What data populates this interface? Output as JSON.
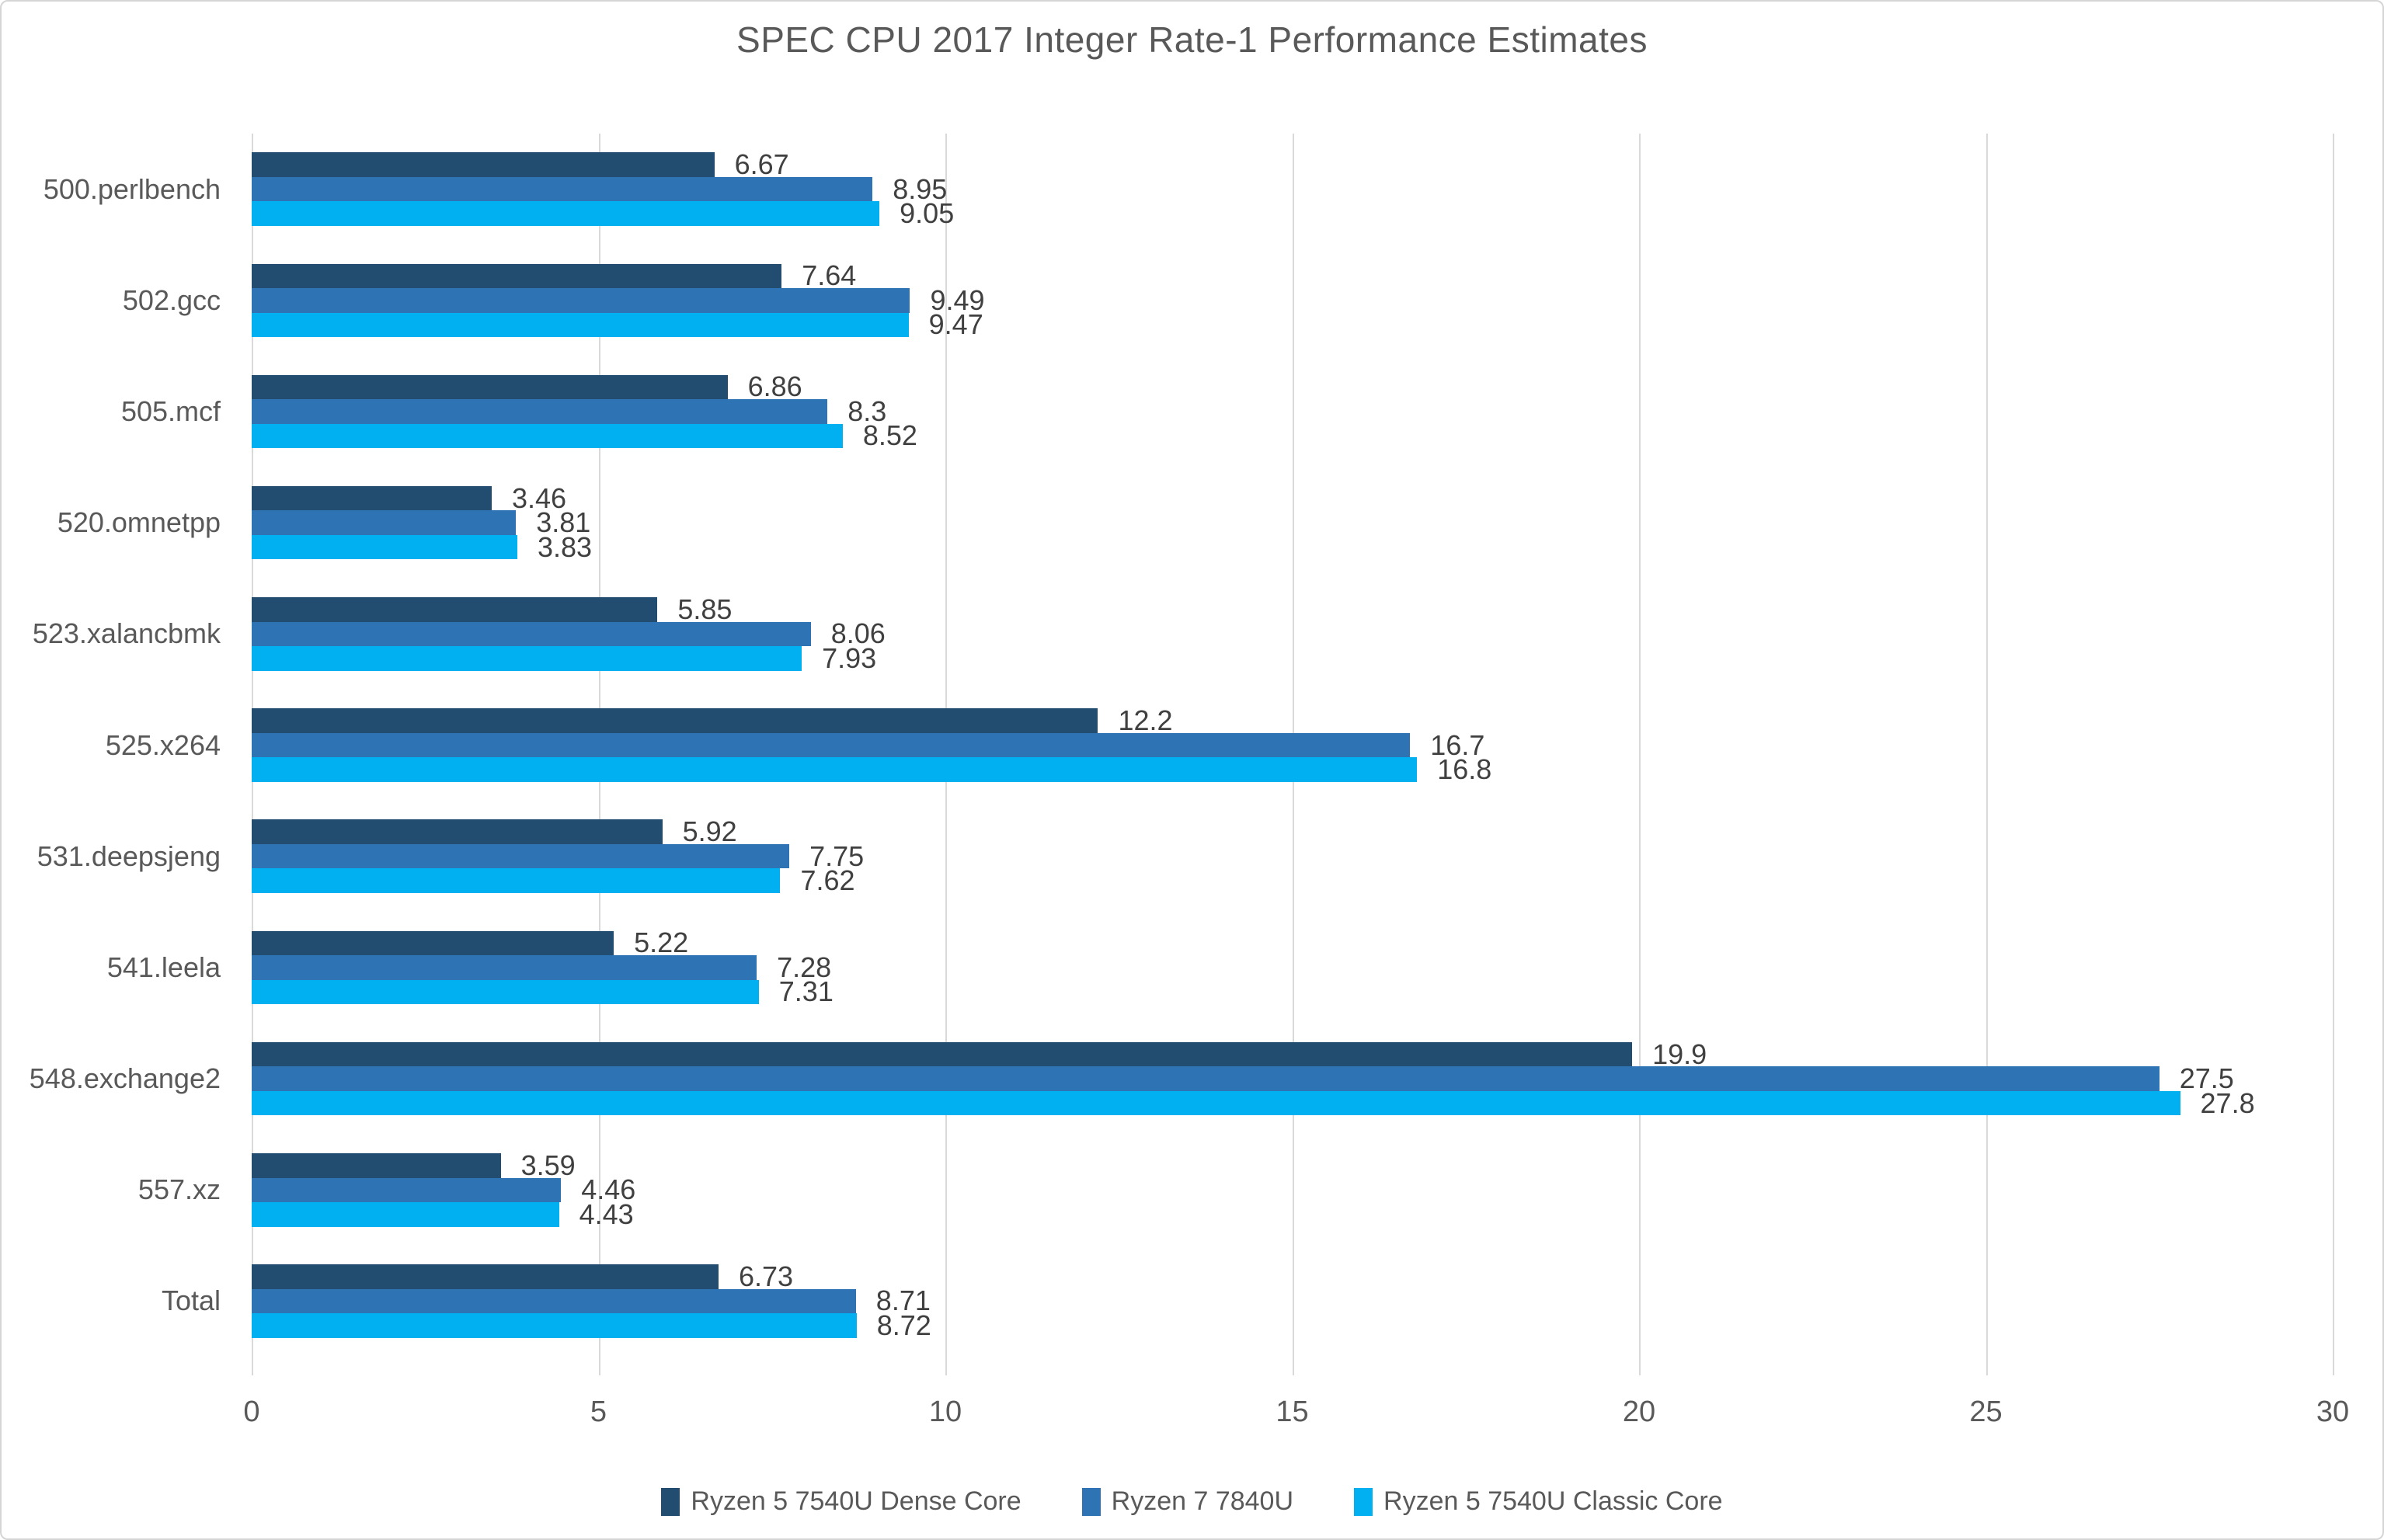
{
  "title": "SPEC CPU 2017 Integer Rate-1 Performance Estimates",
  "chart_data": {
    "type": "bar",
    "orientation": "horizontal",
    "title": "SPEC CPU 2017 Integer Rate-1 Performance Estimates",
    "categories": [
      "500.perlbench",
      "502.gcc",
      "505.mcf",
      "520.omnetpp",
      "523.xalancbmk",
      "525.x264",
      "531.deepsjeng",
      "541.leela",
      "548.exchange2",
      "557.xz",
      "Total"
    ],
    "series": [
      {
        "name": "Ryzen 5 7540U Dense Core",
        "color": "#224C70",
        "values": [
          6.67,
          7.64,
          6.86,
          3.46,
          5.85,
          12.2,
          5.92,
          5.22,
          19.9,
          3.59,
          6.73
        ],
        "labels": [
          "6.67",
          "7.64",
          "6.86",
          "3.46",
          "5.85",
          "12.2",
          "5.92",
          "5.22",
          "19.9",
          "3.59",
          "6.73"
        ]
      },
      {
        "name": "Ryzen 7 7840U",
        "color": "#2E74B5",
        "values": [
          8.95,
          9.49,
          8.3,
          3.81,
          8.06,
          16.7,
          7.75,
          7.28,
          27.5,
          4.46,
          8.71
        ],
        "labels": [
          "8.95",
          "9.49",
          "8.3",
          "3.81",
          "8.06",
          "16.7",
          "7.75",
          "7.28",
          "27.5",
          "4.46",
          "8.71"
        ]
      },
      {
        "name": "Ryzen 5 7540U Classic Core",
        "color": "#00B0F0",
        "values": [
          9.05,
          9.47,
          8.52,
          3.83,
          7.93,
          16.8,
          7.62,
          7.31,
          27.8,
          4.43,
          8.72
        ],
        "labels": [
          "9.05",
          "9.47",
          "8.52",
          "3.83",
          "7.93",
          "16.8",
          "7.62",
          "7.31",
          "27.8",
          "4.43",
          "8.72"
        ]
      }
    ],
    "xlim": [
      0,
      30
    ],
    "x_ticks": [
      "0",
      "5",
      "10",
      "15",
      "20",
      "25",
      "30"
    ],
    "grid": true,
    "legend_position": "bottom"
  },
  "colors": {
    "background": "#FFFFFF",
    "frame_border": "#D5D5D5",
    "gridline": "#D9D9D9",
    "axis_text": "#595959",
    "title_text": "#595959",
    "data_label_text": "#404040"
  }
}
